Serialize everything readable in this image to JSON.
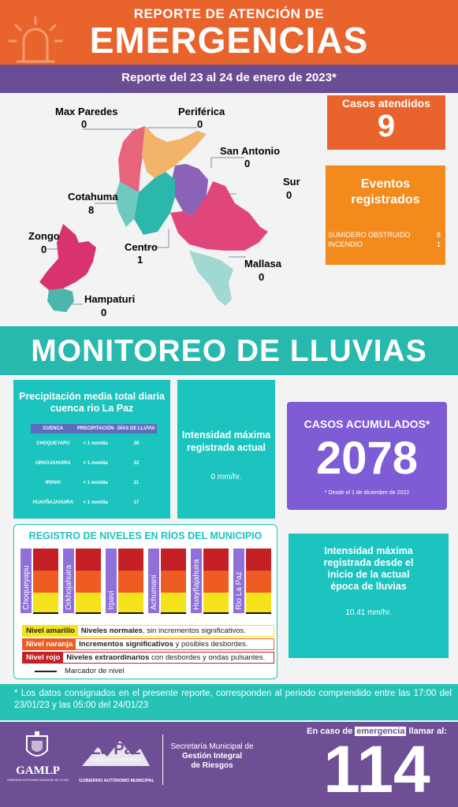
{
  "header": {
    "line1": "REPORTE DE ATENCIÓN DE",
    "line2": "EMERGENCIAS",
    "period": "Reporte del 23 al 24 de enero de 2023*"
  },
  "map": {
    "districts": [
      {
        "name": "Max Paredes",
        "value": "0"
      },
      {
        "name": "Periférica",
        "value": "0"
      },
      {
        "name": "San Antonio",
        "value": "0"
      },
      {
        "name": "Sur",
        "value": "0"
      },
      {
        "name": "Cotahuma",
        "value": "8"
      },
      {
        "name": "Zongo",
        "value": "0"
      },
      {
        "name": "Centro",
        "value": "1"
      },
      {
        "name": "Mallasa",
        "value": "0"
      },
      {
        "name": "Hampaturi",
        "value": "0"
      }
    ]
  },
  "casos": {
    "label": "Casos atendidos",
    "value": "9"
  },
  "eventos": {
    "title": "Eventos registrados",
    "rows": [
      {
        "label": "SUMIDERO OBSTRUIDO",
        "value": "8"
      },
      {
        "label": "INCENDIO",
        "value": "1"
      }
    ]
  },
  "lluvias": {
    "title": "MONITOREO DE LLUVIAS"
  },
  "precip": {
    "title": "Precipitación media total diaria cuenca rio La Paz",
    "headers": [
      "CUENCA",
      "PRECIPITACIÓN",
      "DÍAS DE LLUVIA"
    ],
    "rows": [
      [
        "CHOQUEYAPU",
        "< 1 mm/día",
        "28"
      ],
      [
        "ORKOJAHUIRA",
        "< 1 mm/día",
        "22"
      ],
      [
        "IRPAVI",
        "< 1 mm/día",
        "21"
      ],
      [
        "HUAYÑAJAHUIRA",
        "< 1  mm/día",
        "17"
      ]
    ]
  },
  "intensidad": {
    "label": "Intensidad máxima registrada actual",
    "value": "0 mm/hr."
  },
  "acumulados": {
    "label": "CASOS ACUMULADOS*",
    "value": "2078",
    "note": "* Desde el 1 de diciembre de 2022"
  },
  "rios": {
    "title": "REGISTRO DE NIVELES EN RÍOS DEL MUNICIPIO",
    "rivers": [
      "Choqueyapu",
      "Orkhojahuira",
      "Irpavi",
      "Achumani",
      "Huayñajahuira",
      "Rio La Paz"
    ],
    "legend": [
      {
        "level": "Nivel amarillo",
        "desc_bold": "Niveles normales",
        "desc": ", sin incrementos significativos."
      },
      {
        "level": "Nivel naranja",
        "desc_bold": "Incrementos significativos",
        "desc": " y posibles desbordes."
      },
      {
        "level": "Nivel rojo",
        "desc_bold": "Niveles extraordinarios",
        "desc": " con desbordes y ondas pulsantes."
      }
    ],
    "marker_label": "Marcador de nivel",
    "colors": {
      "yellow": "#f3e21c",
      "orange": "#ee5b23",
      "red": "#c42026"
    }
  },
  "intensidad_epoca": {
    "label": "Intensidad máxima registrada desde el inicio de la actual época de lluvias",
    "value": "10.41 mm/hr."
  },
  "nota": "* Los datos consignados en el presente reporte, corresponden al periodo comprendido entre las 17:00 del 23/01/23 y las 05:00 del 24/01/23",
  "footer": {
    "gamlp": "GAMLP",
    "gamlp_sub": "GOBIERNO AUTÓNOMO MUNICIPAL DE LA PAZ",
    "lapaz": "La Paz",
    "lapaz_sub": "ciudad con compromiso",
    "gob": "GOBIERNO AUTÓNOMO MUNICIPAL",
    "sec1": "Secretaría Municipal de",
    "sec2": "Gestión Integral",
    "sec3": "de Riesgos",
    "call_pre": "En caso de",
    "call_em": "emergencia",
    "call_post": "llamar al:",
    "phone": "114"
  },
  "colors": {
    "orange": "#e8642c",
    "purple": "#6b4d93",
    "teal": "#1bc4bf",
    "violet": "#7e5cd6"
  }
}
